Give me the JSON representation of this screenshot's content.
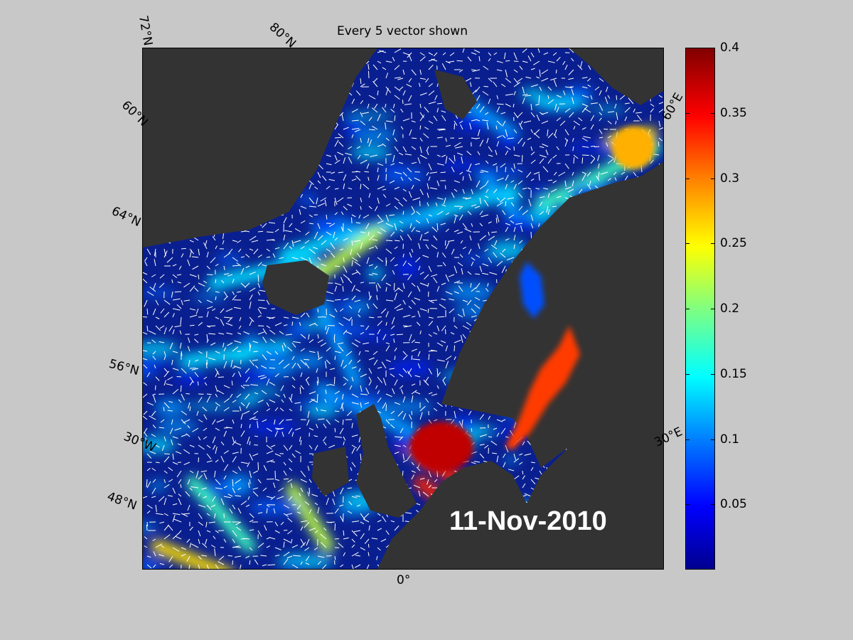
{
  "title": "Every 5 vector shown",
  "date_label": "11-Nov-2010",
  "lat_labels": [
    "72°N",
    "80°N",
    "60°N",
    "64°N",
    "56°N",
    "48°N"
  ],
  "lon_labels": [
    "60°E",
    "30°E",
    "30°W",
    "0°"
  ],
  "colorbar": {
    "min": 0,
    "max": 0.4,
    "ticks": [
      "0.4",
      "0.35",
      "0.3",
      "0.25",
      "0.2",
      "0.15",
      "0.1",
      "0.05"
    ],
    "colormap": "jet"
  },
  "colors": {
    "background": "#c8c8c8",
    "land": "#333333",
    "low_speed": "#0a1f8f",
    "high_speed": "#800000",
    "vectors": "#ffffff"
  }
}
